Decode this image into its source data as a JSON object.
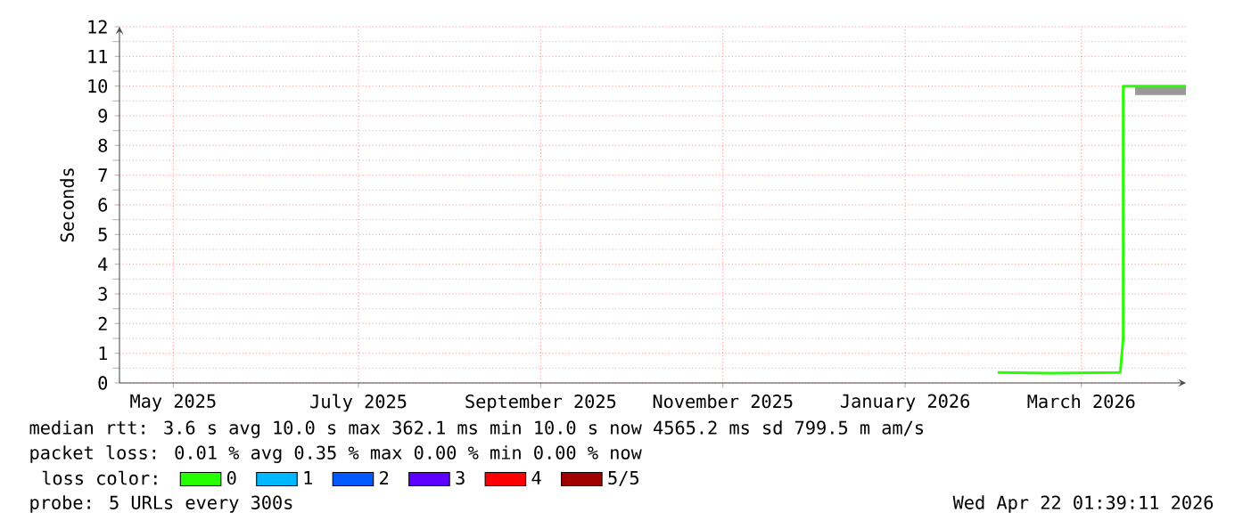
{
  "chart_data": {
    "type": "line",
    "ylabel": "Seconds",
    "x": [
      "2026-02-15",
      "2026-03-05",
      "2026-03-28",
      "2026-03-29",
      "2026-03-29",
      "2026-04-02",
      "2026-04-19"
    ],
    "xlim": [
      "2025-04-27",
      "2026-04-19"
    ],
    "xticks": [
      {
        "value": "2025-05-15",
        "label": "May 2025"
      },
      {
        "value": "2025-07-16",
        "label": "July 2025"
      },
      {
        "value": "2025-09-15",
        "label": "September 2025"
      },
      {
        "value": "2025-11-15",
        "label": "November 2025"
      },
      {
        "value": "2026-01-15",
        "label": "January 2026"
      },
      {
        "value": "2026-03-15",
        "label": "March 2026"
      }
    ],
    "ylim": [
      0,
      12
    ],
    "yticks": [
      0,
      1,
      2,
      3,
      4,
      5,
      6,
      7,
      8,
      9,
      10,
      11,
      12
    ],
    "grid": true,
    "legend": "bottom",
    "legend_title": "loss color:",
    "marker": "none",
    "line_style": "solid",
    "series": [
      {
        "name": "0",
        "color": "#26ff00",
        "values": [
          0.35,
          0.33,
          0.35,
          1.5,
          10,
          10,
          10
        ],
        "lower": [
          null,
          null,
          null,
          null,
          null,
          9.7,
          9.7
        ],
        "upper": [
          null,
          null,
          null,
          null,
          null,
          10,
          10
        ]
      },
      {
        "name": "1",
        "color": "#00b8ff",
        "values": [
          null,
          null,
          null,
          null,
          null,
          null,
          null
        ]
      },
      {
        "name": "2",
        "color": "#0059ff",
        "values": [
          null,
          null,
          null,
          null,
          null,
          null,
          null
        ]
      },
      {
        "name": "3",
        "color": "#5e00ff",
        "values": [
          null,
          null,
          null,
          null,
          null,
          null,
          null
        ]
      },
      {
        "name": "4",
        "color": "#ff0000",
        "values": [
          null,
          null,
          null,
          null,
          null,
          null,
          null
        ]
      },
      {
        "name": "5/5",
        "color": "#a10000",
        "values": [
          null,
          null,
          null,
          null,
          null,
          null,
          null
        ]
      }
    ],
    "annotations": [
      "median rtt: 3.6 s avg 10.0 s max 362.1 ms min 10.0 s now 4565.2 ms sd 799.5 m am/s",
      "packet loss: 0.01 % avg 0.35 % max 0.00 % min 0.00 % now",
      "probe: 5 URLs every 300s",
      "Wed Apr 22 01:39:11 2026"
    ]
  }
}
